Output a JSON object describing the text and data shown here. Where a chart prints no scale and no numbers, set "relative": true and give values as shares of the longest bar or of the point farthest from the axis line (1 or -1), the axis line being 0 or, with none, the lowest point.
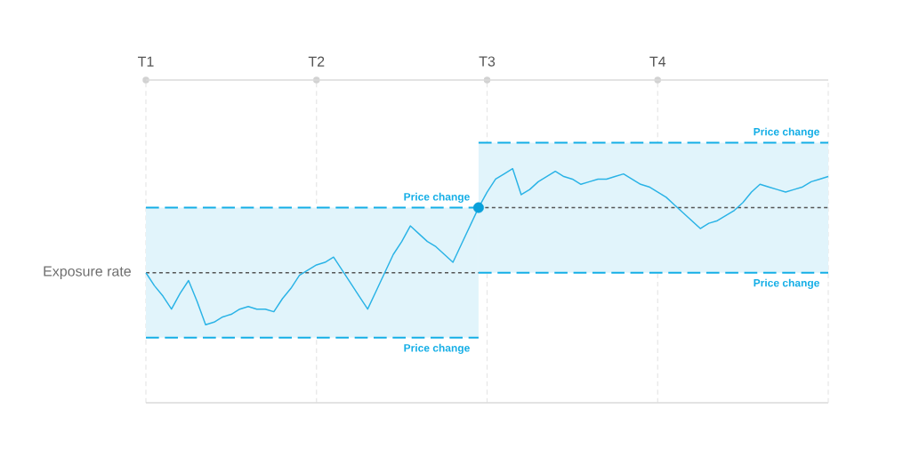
{
  "chart_data": {
    "type": "line",
    "relative": true,
    "categories": [
      "T1",
      null,
      null,
      null,
      null,
      null,
      null,
      null,
      null,
      null,
      null,
      null,
      null,
      null,
      null,
      null,
      null,
      null,
      null,
      null,
      "T2",
      null,
      null,
      null,
      null,
      null,
      null,
      null,
      null,
      null,
      null,
      null,
      null,
      null,
      null,
      null,
      null,
      null,
      null,
      null,
      "T3",
      null,
      null,
      null,
      null,
      null,
      null,
      null,
      null,
      null,
      null,
      null,
      null,
      null,
      null,
      null,
      null,
      null,
      null,
      null,
      "T4",
      null,
      null,
      null,
      null,
      null,
      null,
      null,
      null,
      null,
      null,
      null,
      null,
      null,
      null,
      null,
      null,
      null,
      null,
      null,
      null
    ],
    "grid": "x",
    "series": [
      {
        "name": "Exposure rate",
        "color": "#555555",
        "line_style": "dotted",
        "values": [
          0.5,
          0.5,
          0.5,
          0.5,
          0.5,
          0.5,
          0.5,
          0.5,
          0.5,
          0.5,
          0.5,
          0.5,
          0.5,
          0.5,
          0.5,
          0.5,
          0.5,
          0.5,
          0.5,
          0.5,
          0.5,
          0.5,
          0.5,
          0.5,
          0.5,
          0.5,
          0.5,
          0.5,
          0.5,
          0.5,
          0.5,
          0.5,
          0.5,
          0.5,
          0.5,
          0.5,
          0.5,
          0.5,
          0.5,
          0.5,
          null,
          null,
          null,
          null,
          null,
          null,
          null,
          null,
          null,
          null,
          null,
          null,
          null,
          null,
          null,
          null,
          null,
          null,
          null,
          null,
          null,
          null,
          null,
          null,
          null,
          null,
          null,
          null,
          null,
          null,
          null,
          null,
          null,
          null,
          null,
          null,
          null,
          null,
          null,
          null,
          null
        ]
      },
      {
        "color": "#555555",
        "line_style": "dotted",
        "values": [
          null,
          null,
          null,
          null,
          null,
          null,
          null,
          null,
          null,
          null,
          null,
          null,
          null,
          null,
          null,
          null,
          null,
          null,
          null,
          null,
          null,
          null,
          null,
          null,
          null,
          null,
          null,
          null,
          null,
          null,
          null,
          null,
          null,
          null,
          null,
          null,
          null,
          null,
          null,
          0.75,
          0.75,
          0.75,
          0.75,
          0.75,
          0.75,
          0.75,
          0.75,
          0.75,
          0.75,
          0.75,
          0.75,
          0.75,
          0.75,
          0.75,
          0.75,
          0.75,
          0.75,
          0.75,
          0.75,
          0.75,
          0.75,
          0.75,
          0.75,
          0.75,
          0.75,
          0.75,
          0.75,
          0.75,
          0.75,
          0.75,
          0.75,
          0.75,
          0.75,
          0.75,
          0.75,
          0.75,
          0.75,
          0.75,
          0.75,
          0.75,
          0.75
        ]
      },
      {
        "name": "Price change",
        "color": "#14aee6",
        "line_style": "dashed",
        "values": [
          0.75,
          0.75,
          0.75,
          0.75,
          0.75,
          0.75,
          0.75,
          0.75,
          0.75,
          0.75,
          0.75,
          0.75,
          0.75,
          0.75,
          0.75,
          0.75,
          0.75,
          0.75,
          0.75,
          0.75,
          0.75,
          0.75,
          0.75,
          0.75,
          0.75,
          0.75,
          0.75,
          0.75,
          0.75,
          0.75,
          0.75,
          0.75,
          0.75,
          0.75,
          0.75,
          0.75,
          0.75,
          0.75,
          0.75,
          0.75,
          null,
          null,
          null,
          null,
          null,
          null,
          null,
          null,
          null,
          null,
          null,
          null,
          null,
          null,
          null,
          null,
          null,
          null,
          null,
          null,
          null,
          null,
          null,
          null,
          null,
          null,
          null,
          null,
          null,
          null,
          null,
          null,
          null,
          null,
          null,
          null,
          null,
          null,
          null,
          null,
          null
        ]
      },
      {
        "name": "Price change",
        "color": "#14aee6",
        "line_style": "dashed",
        "values": [
          0.25,
          0.25,
          0.25,
          0.25,
          0.25,
          0.25,
          0.25,
          0.25,
          0.25,
          0.25,
          0.25,
          0.25,
          0.25,
          0.25,
          0.25,
          0.25,
          0.25,
          0.25,
          0.25,
          0.25,
          0.25,
          0.25,
          0.25,
          0.25,
          0.25,
          0.25,
          0.25,
          0.25,
          0.25,
          0.25,
          0.25,
          0.25,
          0.25,
          0.25,
          0.25,
          0.25,
          0.25,
          0.25,
          0.25,
          0.25,
          null,
          null,
          null,
          null,
          null,
          null,
          null,
          null,
          null,
          null,
          null,
          null,
          null,
          null,
          null,
          null,
          null,
          null,
          null,
          null,
          null,
          null,
          null,
          null,
          null,
          null,
          null,
          null,
          null,
          null,
          null,
          null,
          null,
          null,
          null,
          null,
          null,
          null,
          null,
          null,
          null
        ]
      },
      {
        "name": "Price change",
        "color": "#14aee6",
        "line_style": "dashed",
        "values": [
          null,
          null,
          null,
          null,
          null,
          null,
          null,
          null,
          null,
          null,
          null,
          null,
          null,
          null,
          null,
          null,
          null,
          null,
          null,
          null,
          null,
          null,
          null,
          null,
          null,
          null,
          null,
          null,
          null,
          null,
          null,
          null,
          null,
          null,
          null,
          null,
          null,
          null,
          null,
          1,
          1,
          1,
          1,
          1,
          1,
          1,
          1,
          1,
          1,
          1,
          1,
          1,
          1,
          1,
          1,
          1,
          1,
          1,
          1,
          1,
          1,
          1,
          1,
          1,
          1,
          1,
          1,
          1,
          1,
          1,
          1,
          1,
          1,
          1,
          1,
          1,
          1,
          1,
          1,
          1,
          1
        ]
      },
      {
        "name": "Price change",
        "color": "#14aee6",
        "line_style": "dashed",
        "values": [
          null,
          null,
          null,
          null,
          null,
          null,
          null,
          null,
          null,
          null,
          null,
          null,
          null,
          null,
          null,
          null,
          null,
          null,
          null,
          null,
          null,
          null,
          null,
          null,
          null,
          null,
          null,
          null,
          null,
          null,
          null,
          null,
          null,
          null,
          null,
          null,
          null,
          null,
          null,
          0.5,
          0.5,
          0.5,
          0.5,
          0.5,
          0.5,
          0.5,
          0.5,
          0.5,
          0.5,
          0.5,
          0.5,
          0.5,
          0.5,
          0.5,
          0.5,
          0.5,
          0.5,
          0.5,
          0.5,
          0.5,
          0.5,
          0.5,
          0.5,
          0.5,
          0.5,
          0.5,
          0.5,
          0.5,
          0.5,
          0.5,
          0.5,
          0.5,
          0.5,
          0.5,
          0.5,
          0.5,
          0.5,
          0.5,
          0.5,
          0.5,
          0.5
        ]
      },
      {
        "color": "#2ab3e6",
        "values": [
          0.5,
          0.45,
          0.41,
          0.36,
          0.42,
          0.47,
          0.39,
          0.3,
          0.31,
          0.33,
          0.34,
          0.36,
          0.37,
          0.36,
          0.36,
          0.35,
          0.4,
          0.44,
          0.49,
          0.51,
          0.53,
          0.54,
          0.56,
          0.51,
          0.46,
          0.41,
          0.36,
          0.43,
          0.5,
          0.57,
          0.62,
          0.68,
          0.65,
          0.62,
          0.6,
          0.57,
          0.54,
          0.61,
          0.68,
          0.75,
          null,
          null,
          null,
          null,
          null,
          null,
          null,
          null,
          null,
          null,
          null,
          null,
          null,
          null,
          null,
          null,
          null,
          null,
          null,
          null,
          null,
          null,
          null,
          null,
          null,
          null,
          null,
          null,
          null,
          null,
          null,
          null,
          null,
          null,
          null,
          null,
          null,
          null,
          null,
          null,
          null
        ],
        "lower": [
          0.25,
          0.25,
          0.25,
          0.25,
          0.25,
          0.25,
          0.25,
          0.25,
          0.25,
          0.25,
          0.25,
          0.25,
          0.25,
          0.25,
          0.25,
          0.25,
          0.25,
          0.25,
          0.25,
          0.25,
          0.25,
          0.25,
          0.25,
          0.25,
          0.25,
          0.25,
          0.25,
          0.25,
          0.25,
          0.25,
          0.25,
          0.25,
          0.25,
          0.25,
          0.25,
          0.25,
          0.25,
          0.25,
          0.25,
          0.25,
          null,
          null,
          null,
          null,
          null,
          null,
          null,
          null,
          null,
          null,
          null,
          null,
          null,
          null,
          null,
          null,
          null,
          null,
          null,
          null,
          null,
          null,
          null,
          null,
          null,
          null,
          null,
          null,
          null,
          null,
          null,
          null,
          null,
          null,
          null,
          null,
          null,
          null,
          null,
          null,
          null
        ],
        "upper": [
          0.75,
          0.75,
          0.75,
          0.75,
          0.75,
          0.75,
          0.75,
          0.75,
          0.75,
          0.75,
          0.75,
          0.75,
          0.75,
          0.75,
          0.75,
          0.75,
          0.75,
          0.75,
          0.75,
          0.75,
          0.75,
          0.75,
          0.75,
          0.75,
          0.75,
          0.75,
          0.75,
          0.75,
          0.75,
          0.75,
          0.75,
          0.75,
          0.75,
          0.75,
          0.75,
          0.75,
          0.75,
          0.75,
          0.75,
          0.75,
          null,
          null,
          null,
          null,
          null,
          null,
          null,
          null,
          null,
          null,
          null,
          null,
          null,
          null,
          null,
          null,
          null,
          null,
          null,
          null,
          null,
          null,
          null,
          null,
          null,
          null,
          null,
          null,
          null,
          null,
          null,
          null,
          null,
          null,
          null,
          null,
          null,
          null,
          null,
          null,
          null
        ]
      },
      {
        "color": "#2ab3e6",
        "values": [
          null,
          null,
          null,
          null,
          null,
          null,
          null,
          null,
          null,
          null,
          null,
          null,
          null,
          null,
          null,
          null,
          null,
          null,
          null,
          null,
          null,
          null,
          null,
          null,
          null,
          null,
          null,
          null,
          null,
          null,
          null,
          null,
          null,
          null,
          null,
          null,
          null,
          null,
          null,
          0.75,
          0.81,
          0.86,
          0.88,
          0.9,
          0.8,
          0.82,
          0.85,
          0.87,
          0.89,
          0.87,
          0.86,
          0.84,
          0.85,
          0.86,
          0.86,
          0.87,
          0.88,
          0.86,
          0.84,
          0.83,
          0.81,
          0.79,
          0.76,
          0.73,
          0.7,
          0.67,
          0.69,
          0.7,
          0.72,
          0.74,
          0.77,
          0.81,
          0.84,
          0.83,
          0.82,
          0.81,
          0.82,
          0.83,
          0.85,
          0.86,
          0.87
        ],
        "lower": [
          null,
          null,
          null,
          null,
          null,
          null,
          null,
          null,
          null,
          null,
          null,
          null,
          null,
          null,
          null,
          null,
          null,
          null,
          null,
          null,
          null,
          null,
          null,
          null,
          null,
          null,
          null,
          null,
          null,
          null,
          null,
          null,
          null,
          null,
          null,
          null,
          null,
          null,
          null,
          0.5,
          0.5,
          0.5,
          0.5,
          0.5,
          0.5,
          0.5,
          0.5,
          0.5,
          0.5,
          0.5,
          0.5,
          0.5,
          0.5,
          0.5,
          0.5,
          0.5,
          0.5,
          0.5,
          0.5,
          0.5,
          0.5,
          0.5,
          0.5,
          0.5,
          0.5,
          0.5,
          0.5,
          0.5,
          0.5,
          0.5,
          0.5,
          0.5,
          0.5,
          0.5,
          0.5,
          0.5,
          0.5,
          0.5,
          0.5,
          0.5,
          0.5
        ],
        "upper": [
          null,
          null,
          null,
          null,
          null,
          null,
          null,
          null,
          null,
          null,
          null,
          null,
          null,
          null,
          null,
          null,
          null,
          null,
          null,
          null,
          null,
          null,
          null,
          null,
          null,
          null,
          null,
          null,
          null,
          null,
          null,
          null,
          null,
          null,
          null,
          null,
          null,
          null,
          null,
          1,
          1,
          1,
          1,
          1,
          1,
          1,
          1,
          1,
          1,
          1,
          1,
          1,
          1,
          1,
          1,
          1,
          1,
          1,
          1,
          1,
          1,
          1,
          1,
          1,
          1,
          1,
          1,
          1,
          1,
          1,
          1,
          1,
          1,
          1,
          1,
          1,
          1,
          1,
          1,
          1,
          1
        ]
      },
      {
        "type": "scatter",
        "color": "#0aa0da",
        "marker": "circle",
        "values": [
          null,
          null,
          null,
          null,
          null,
          null,
          null,
          null,
          null,
          null,
          null,
          null,
          null,
          null,
          null,
          null,
          null,
          null,
          null,
          null,
          null,
          null,
          null,
          null,
          null,
          null,
          null,
          null,
          null,
          null,
          null,
          null,
          null,
          null,
          null,
          null,
          null,
          null,
          null,
          0.75,
          null,
          null,
          null,
          null,
          null,
          null,
          null,
          null,
          null,
          null,
          null,
          null,
          null,
          null,
          null,
          null,
          null,
          null,
          null,
          null,
          null,
          null,
          null,
          null,
          null,
          null,
          null,
          null,
          null,
          null,
          null,
          null,
          null,
          null,
          null,
          null,
          null,
          null,
          null,
          null,
          null
        ]
      }
    ]
  }
}
